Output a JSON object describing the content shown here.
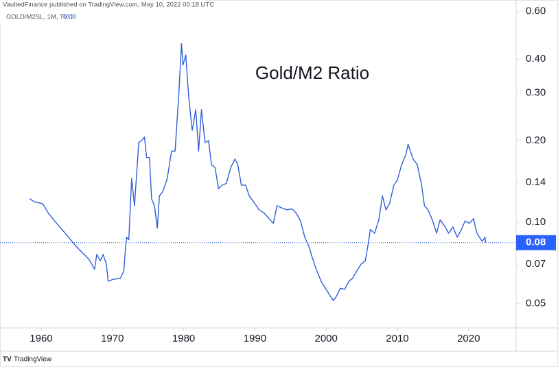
{
  "header": {
    "publisher": "VaultedFinance published on TradingView.com, May 10, 2022 00:18 UTC",
    "symbol": "GOLD/M2SL, 1M, TVC",
    "brand": "TradingView"
  },
  "chart_data": {
    "type": "line",
    "title": "Gold/M2 Ratio",
    "ylog": true,
    "grid": false,
    "color": "#2e5fd6",
    "xlim": [
      1954.22,
      2026.67
    ],
    "xticks": [
      1960,
      1970,
      1980,
      1990,
      2000,
      2010,
      2020
    ],
    "ylim": [
      0.0407,
      0.661
    ],
    "yticks": [
      {
        "value": 0.6,
        "label": "0.60"
      },
      {
        "value": 0.4,
        "label": "0.40"
      },
      {
        "value": 0.3,
        "label": "0.30"
      },
      {
        "value": 0.2,
        "label": "0.20"
      },
      0.14,
      {
        "value": 0.1,
        "label": "0.10"
      },
      0.07,
      0.05
    ],
    "last_value": 0.084,
    "last_value_label": "0.08",
    "x": [
      1958.4,
      1959.0,
      1960.2,
      1961.0,
      1961.9,
      1962.9,
      1963.85,
      1964.8,
      1965.8,
      1966.7,
      1967.5,
      1967.8,
      1968.3,
      1968.7,
      1969.15,
      1969.4,
      1970.1,
      1971.1,
      1971.6,
      1971.85,
      1972.0,
      1972.3,
      1972.7,
      1973.1,
      1973.7,
      1974.1,
      1974.5,
      1974.8,
      1975.2,
      1975.5,
      1975.9,
      1976.3,
      1976.6,
      1977.1,
      1977.7,
      1978.3,
      1978.8,
      1979.3,
      1979.7,
      1979.9,
      1980.3,
      1980.7,
      1981.2,
      1981.7,
      1982.1,
      1982.5,
      1983.0,
      1983.5,
      1983.9,
      1984.4,
      1984.9,
      1985.4,
      1986.0,
      1986.6,
      1987.2,
      1987.6,
      1988.1,
      1988.7,
      1989.2,
      1989.7,
      1990.2,
      1990.6,
      1991.3,
      1992.0,
      1992.6,
      1993.1,
      1993.7,
      1994.5,
      1995.2,
      1995.8,
      1996.4,
      1997.0,
      1997.6,
      1998.2,
      1998.7,
      1999.3,
      1999.9,
      2000.5,
      2001.0,
      2001.4,
      2002.0,
      2002.6,
      2003.2,
      2003.7,
      2004.3,
      2004.9,
      2005.5,
      2005.9,
      2006.2,
      2006.8,
      2007.4,
      2007.9,
      2008.4,
      2008.9,
      2009.5,
      2010.0,
      2010.6,
      2011.2,
      2011.5,
      2012.2,
      2012.8,
      2013.4,
      2013.8,
      2014.3,
      2014.9,
      2015.5,
      2016.0,
      2016.6,
      2017.2,
      2017.8,
      2018.4,
      2019.0,
      2019.5,
      2020.1,
      2020.7,
      2021.1,
      2021.5,
      2021.9,
      2022.3,
      2022.4
    ],
    "values": [
      0.122,
      0.119,
      0.117,
      0.108,
      0.101,
      0.094,
      0.088,
      0.082,
      0.077,
      0.073,
      0.067,
      0.076,
      0.072,
      0.076,
      0.07,
      0.0605,
      0.0615,
      0.062,
      0.066,
      0.081,
      0.088,
      0.086,
      0.145,
      0.115,
      0.197,
      0.2,
      0.206,
      0.173,
      0.173,
      0.122,
      0.115,
      0.095,
      0.125,
      0.13,
      0.145,
      0.183,
      0.183,
      0.292,
      0.456,
      0.38,
      0.414,
      0.292,
      0.218,
      0.26,
      0.183,
      0.26,
      0.197,
      0.2,
      0.163,
      0.159,
      0.133,
      0.137,
      0.139,
      0.159,
      0.171,
      0.163,
      0.137,
      0.137,
      0.125,
      0.12,
      0.115,
      0.111,
      0.108,
      0.103,
      0.099,
      0.115,
      0.113,
      0.111,
      0.112,
      0.108,
      0.101,
      0.088,
      0.081,
      0.072,
      0.066,
      0.0605,
      0.057,
      0.0538,
      0.0514,
      0.053,
      0.057,
      0.0565,
      0.0605,
      0.062,
      0.066,
      0.07,
      0.072,
      0.083,
      0.094,
      0.091,
      0.102,
      0.125,
      0.111,
      0.117,
      0.137,
      0.143,
      0.163,
      0.178,
      0.194,
      0.171,
      0.163,
      0.137,
      0.115,
      0.111,
      0.102,
      0.091,
      0.102,
      0.097,
      0.091,
      0.096,
      0.088,
      0.094,
      0.101,
      0.099,
      0.103,
      0.092,
      0.088,
      0.085,
      0.088,
      0.084
    ]
  }
}
